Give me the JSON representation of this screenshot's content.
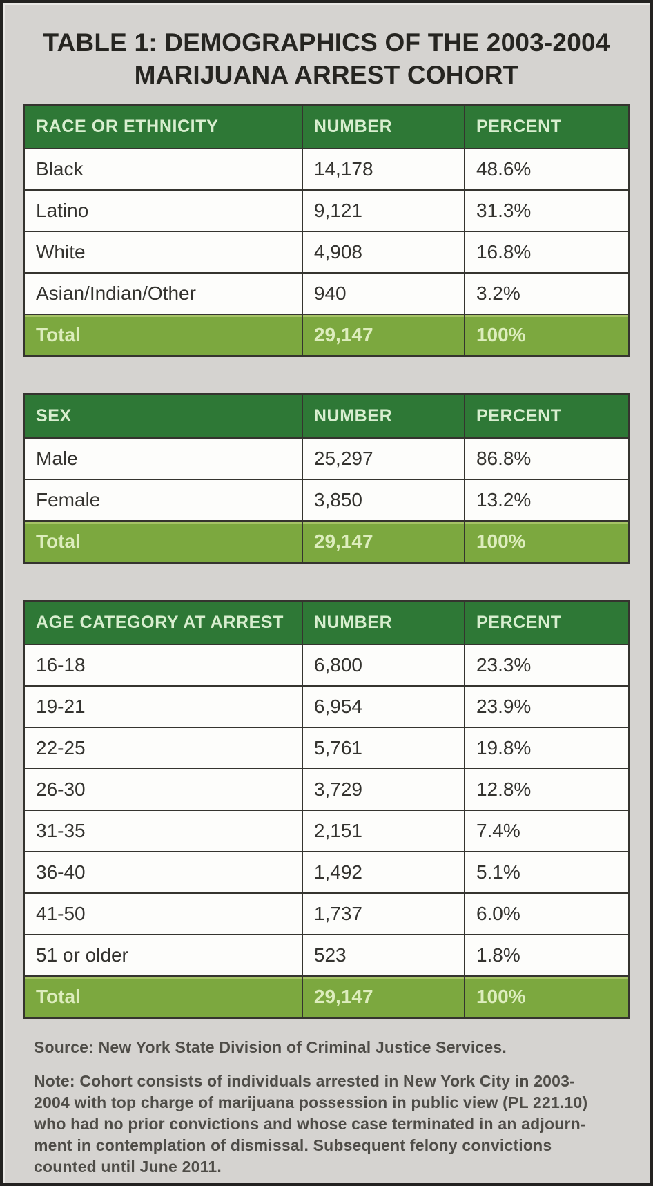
{
  "title": {
    "line1": "TABLE 1: DEMOGRAPHICS OF THE 2003-2004",
    "line2": "MARIJUANA ARREST COHORT"
  },
  "colors": {
    "panel_bg": "#d5d3d0",
    "outer_border": "#232220",
    "title_text": "#262521",
    "header_green": "#2e7836",
    "header_text": "#d8eecf",
    "total_green": "#7ca83f",
    "total_text": "#ddedbd",
    "row_bg": "#fdfdfb",
    "body_text": "#34332f",
    "grid_line": "#35342f",
    "footer_text": "#4e4c47"
  },
  "chart_data": [
    {
      "type": "table",
      "title": "Race or Ethnicity of the 2003-2004 Marijuana Arrest Cohort",
      "columns": [
        "RACE OR ETHNICITY",
        "NUMBER",
        "PERCENT"
      ],
      "rows": [
        [
          "Black",
          "14,178",
          "48.6%"
        ],
        [
          "Latino",
          "9,121",
          "31.3%"
        ],
        [
          "White",
          "4,908",
          "16.8%"
        ],
        [
          "Asian/Indian/Other",
          "940",
          "3.2%"
        ]
      ],
      "total_row": [
        "Total",
        "29,147",
        "100%"
      ]
    },
    {
      "type": "table",
      "title": "Sex of the 2003-2004 Marijuana Arrest Cohort",
      "columns": [
        "SEX",
        "NUMBER",
        "PERCENT"
      ],
      "rows": [
        [
          "Male",
          "25,297",
          "86.8%"
        ],
        [
          "Female",
          "3,850",
          "13.2%"
        ]
      ],
      "total_row": [
        "Total",
        "29,147",
        "100%"
      ]
    },
    {
      "type": "table",
      "title": "Age Category at Arrest of the 2003-2004 Marijuana Arrest Cohort",
      "columns": [
        "AGE CATEGORY AT ARREST",
        "NUMBER",
        "PERCENT"
      ],
      "rows": [
        [
          "16-18",
          "6,800",
          "23.3%"
        ],
        [
          "19-21",
          "6,954",
          "23.9%"
        ],
        [
          "22-25",
          "5,761",
          "19.8%"
        ],
        [
          "26-30",
          "3,729",
          "12.8%"
        ],
        [
          "31-35",
          "2,151",
          "7.4%"
        ],
        [
          "36-40",
          "1,492",
          "5.1%"
        ],
        [
          "41-50",
          "1,737",
          "6.0%"
        ],
        [
          "51 or older",
          "523",
          "1.8%"
        ]
      ],
      "total_row": [
        "Total",
        "29,147",
        "100%"
      ]
    }
  ],
  "footer": {
    "source": "Source: New York State Division of Criminal Justice Services.",
    "note_lines": [
      "Note: Cohort consists of individuals arrested in New York City in 2003-",
      "2004 with top charge of marijuana possession in public view (PL 221.10)",
      "who had no prior convictions and whose case terminated in an adjourn-",
      "ment in contemplation of dismissal. Subsequent felony convictions",
      "counted until June 2011."
    ]
  }
}
